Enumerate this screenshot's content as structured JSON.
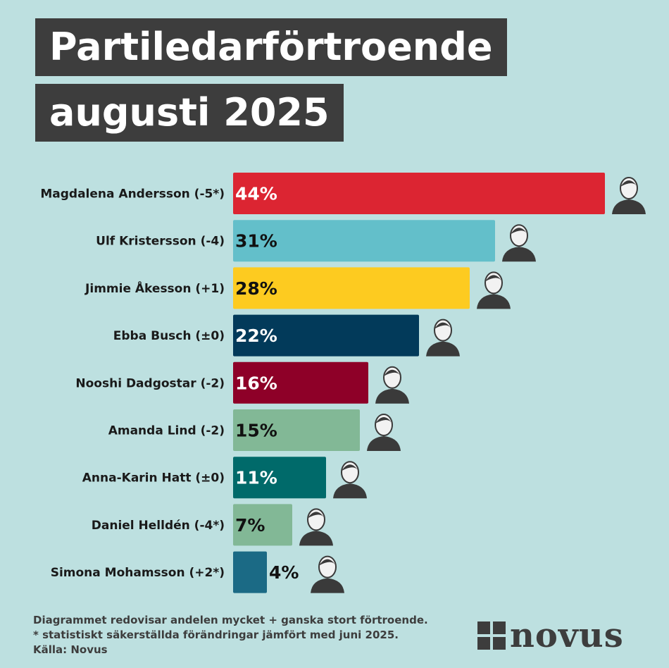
{
  "title": {
    "line1": "Partiledarförtroende",
    "line2": "augusti 2025"
  },
  "chart_data": {
    "type": "bar",
    "orientation": "horizontal",
    "xlim": [
      0,
      44
    ],
    "categories": [
      "Magdalena Andersson (-5*)",
      "Ulf Kristersson (-4)",
      "Jimmie Åkesson (+1)",
      "Ebba Busch (±0)",
      "Nooshi Dadgostar (-2)",
      "Amanda Lind (-2)",
      "Anna-Karin Hatt (±0)",
      "Daniel Helldén (-4*)",
      "Simona Mohamsson (+2*)"
    ],
    "values": [
      44,
      31,
      28,
      22,
      16,
      15,
      11,
      7,
      4
    ],
    "value_labels": [
      "44%",
      "31%",
      "28%",
      "22%",
      "16%",
      "15%",
      "11%",
      "7%",
      "4%"
    ],
    "colors": [
      "#dc2532",
      "#63bfca",
      "#fdcb20",
      "#023a5a",
      "#8e0028",
      "#82b896",
      "#006a6a",
      "#82b896",
      "#1b6a85"
    ],
    "label_colors": [
      "#ffffff",
      "#111111",
      "#111111",
      "#ffffff",
      "#ffffff",
      "#111111",
      "#ffffff",
      "#111111",
      "#111111"
    ],
    "portrait_icons": [
      "person-portrait-icon",
      "person-portrait-icon",
      "person-portrait-icon",
      "person-portrait-icon",
      "person-portrait-icon",
      "person-portrait-icon",
      "person-portrait-icon",
      "person-portrait-icon",
      "person-portrait-icon"
    ]
  },
  "footer": {
    "line1": "Diagrammet redovisar andelen mycket + ganska stort förtroende.",
    "line2": "* statistiskt säkerställda förändringar jämfört med juni 2025.",
    "line3": "Källa: Novus"
  },
  "logo": {
    "text": "novus",
    "icon": "novus-logo-icon"
  }
}
